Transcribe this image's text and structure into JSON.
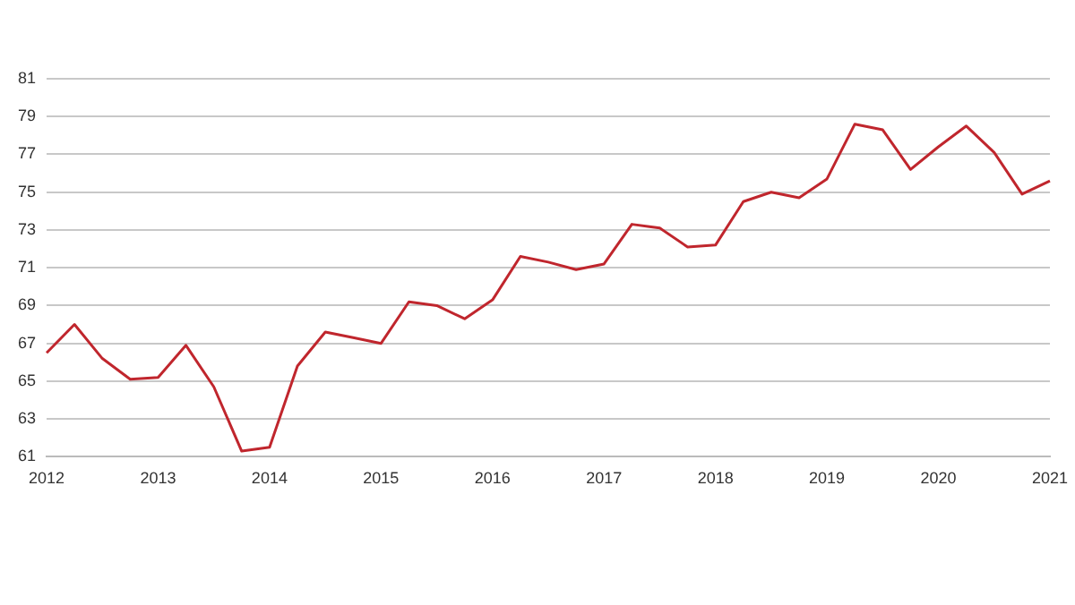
{
  "chart_data": {
    "type": "line",
    "categories": [
      "2012",
      null,
      null,
      null,
      "2013",
      null,
      null,
      null,
      "2014",
      null,
      null,
      null,
      "2015",
      null,
      null,
      null,
      "2016",
      null,
      null,
      null,
      "2017",
      null,
      null,
      null,
      "2018",
      null,
      null,
      null,
      "2019",
      null,
      null,
      null,
      "2020",
      null,
      null,
      null,
      "2021"
    ],
    "series": [
      {
        "color": "#c0262d",
        "values": [
          66.5,
          68.0,
          66.2,
          65.1,
          65.2,
          66.9,
          64.7,
          61.3,
          61.5,
          65.8,
          67.6,
          67.3,
          67.0,
          69.2,
          69.0,
          68.3,
          69.3,
          71.6,
          71.3,
          70.9,
          71.2,
          73.3,
          73.1,
          72.1,
          72.2,
          74.5,
          75.0,
          74.7,
          75.7,
          78.6,
          78.3,
          76.2,
          77.4,
          78.5,
          77.1,
          74.9,
          75.6
        ]
      }
    ],
    "ylim": [
      61,
      81
    ],
    "yticks": [
      61,
      63,
      65,
      67,
      69,
      71,
      73,
      75,
      77,
      79,
      81
    ],
    "grid": "y",
    "legend": false,
    "marker": "none",
    "line_style": "solid"
  }
}
